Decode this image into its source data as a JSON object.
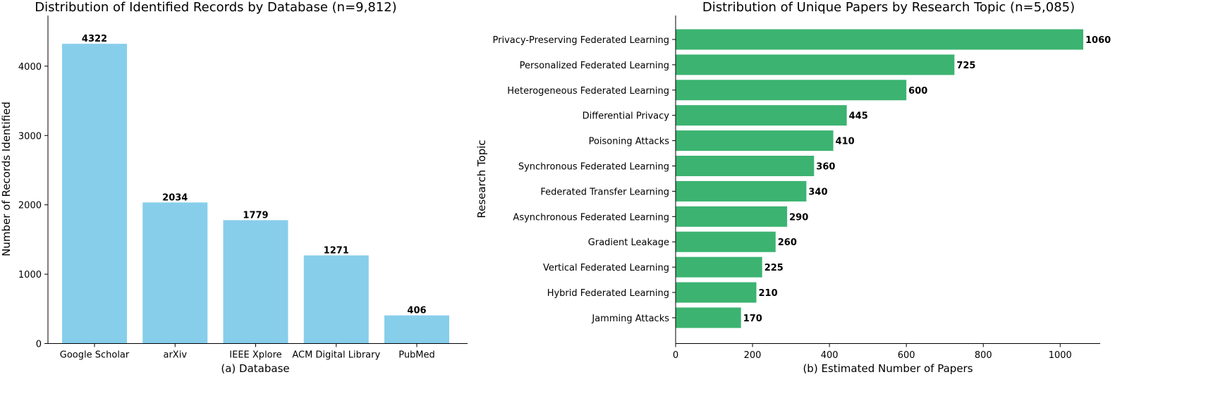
{
  "chart_data": [
    {
      "type": "bar",
      "orientation": "vertical",
      "title": "Distribution of Identified Records by Database (n=9,812)",
      "xlabel": "(a) Database",
      "ylabel": "Number of Records Identified",
      "categories": [
        "Google Scholar",
        "arXiv",
        "IEEE Xplore",
        "ACM Digital Library",
        "PubMed"
      ],
      "values": [
        4322,
        2034,
        1779,
        1271,
        406
      ],
      "data_labels": [
        "4322",
        "2034",
        "1779",
        "1271",
        "406"
      ],
      "yticks": [
        0,
        1000,
        2000,
        3000,
        4000
      ],
      "ytick_labels": [
        "0",
        "1000",
        "2000",
        "3000",
        "4000"
      ],
      "ylim": [
        0,
        4730
      ],
      "color": "#87CEEB",
      "grid": false
    },
    {
      "type": "bar",
      "orientation": "horizontal",
      "title": "Distribution of Unique Papers by Research Topic (n=5,085)",
      "xlabel": "(b) Estimated Number of Papers",
      "ylabel": "Research Topic",
      "categories": [
        "Privacy-Preserving Federated Learning",
        "Personalized Federated Learning",
        "Heterogeneous Federated Learning",
        "Differential Privacy",
        "Poisoning Attacks",
        "Synchronous Federated Learning",
        "Federated Transfer Learning",
        "Asynchronous Federated Learning",
        "Gradient Leakage",
        "Vertical Federated Learning",
        "Hybrid Federated Learning",
        "Jamming Attacks"
      ],
      "values": [
        1060,
        725,
        600,
        445,
        410,
        360,
        340,
        290,
        260,
        225,
        210,
        170
      ],
      "data_labels": [
        "1060",
        "725",
        "600",
        "445",
        "410",
        "360",
        "340",
        "290",
        "260",
        "225",
        "210",
        "170"
      ],
      "xticks": [
        0,
        200,
        400,
        600,
        800,
        1000
      ],
      "xtick_labels": [
        "0",
        "200",
        "400",
        "600",
        "800",
        "1000"
      ],
      "xlim": [
        0,
        1104
      ],
      "color": "#3CB371",
      "grid": false
    }
  ]
}
